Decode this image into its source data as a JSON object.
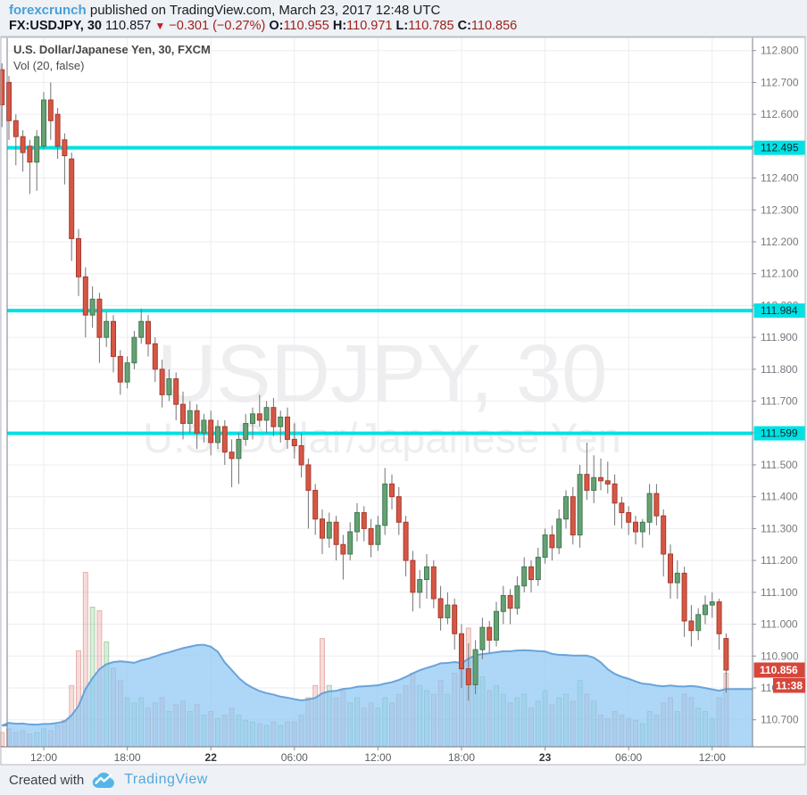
{
  "header": {
    "source": "forexcrunch",
    "published": "published on TradingView.com, March 23, 2017 12:48 UTC",
    "symbol": "FX:USDJPY, 30",
    "last_price": "110.857",
    "direction_icon": "▼",
    "change": "−0.301 (−0.27%)",
    "ohlc": [
      {
        "label": "O:",
        "value": "110.955"
      },
      {
        "label": "H:",
        "value": "110.971"
      },
      {
        "label": "L:",
        "value": "110.785"
      },
      {
        "label": "C:",
        "value": "110.856"
      }
    ]
  },
  "legend": {
    "title": "U.S. Dollar/Japanese Yen, 30, FXCM",
    "indicator": "Vol (20, false)"
  },
  "watermark": {
    "line1": "USDJPY, 30",
    "line2": "U.S. Dollar/Japanese Yen"
  },
  "footer": {
    "created_with": "Created with",
    "brand": "TradingView",
    "logo": "tradingview-cloud-icon"
  },
  "colors": {
    "up_fill": "#66a173",
    "up_border": "#3f7c52",
    "down_fill": "#d65745",
    "down_border": "#a93b2e",
    "wick": "#737375",
    "vol_up_fill": "rgba(132,196,138,0.30)",
    "vol_up_border": "rgba(108,176,116,0.55)",
    "vol_down_fill": "rgba(222,130,120,0.28)",
    "vol_down_border": "rgba(210,120,112,0.5)",
    "ma_fill": "rgba(140,198,244,0.70)",
    "ma_line": "rgba(98,160,216,0.95)",
    "level_line": "#00e1e4",
    "last_label_bg": "#d6473b",
    "grid": "#ededf1",
    "axis_text": "#76787f",
    "border": "#7a7e88",
    "watermark": "rgba(101,103,120,0.11)"
  },
  "chart_data": {
    "type": "candlestick+volume",
    "symbol": "USDJPY",
    "interval": "30",
    "exchange": "FXCM",
    "price_axis": {
      "min": 110.63,
      "max": 112.85,
      "tick_step": 0.1,
      "ticks": [
        112.8,
        112.7,
        112.6,
        112.5,
        112.4,
        112.3,
        112.2,
        112.1,
        112.0,
        111.9,
        111.8,
        111.7,
        111.6,
        111.5,
        111.4,
        111.3,
        111.2,
        111.1,
        111.0,
        110.9,
        110.8,
        110.7
      ]
    },
    "time_axis": {
      "labels": [
        {
          "text": "12:00",
          "bar": 6,
          "bold": false
        },
        {
          "text": "18:00",
          "bar": 18,
          "bold": false
        },
        {
          "text": "22",
          "bar": 30,
          "bold": true
        },
        {
          "text": "06:00",
          "bar": 42,
          "bold": false
        },
        {
          "text": "12:00",
          "bar": 54,
          "bold": false
        },
        {
          "text": "18:00",
          "bar": 66,
          "bold": false
        },
        {
          "text": "23",
          "bar": 78,
          "bold": true
        },
        {
          "text": "06:00",
          "bar": 90,
          "bold": false
        },
        {
          "text": "12:00",
          "bar": 102,
          "bold": false
        }
      ]
    },
    "horizontal_lines": [
      112.495,
      111.984,
      111.599
    ],
    "last": {
      "price": 110.856,
      "price_label": "110.856",
      "time_label": "11:38"
    },
    "volume_ma": {
      "length": 20
    },
    "candles": [
      [
        112.74,
        112.76,
        112.56,
        112.63,
        0.08
      ],
      [
        112.7,
        112.72,
        112.52,
        112.58,
        0.1
      ],
      [
        112.58,
        112.6,
        112.44,
        112.53,
        0.08
      ],
      [
        112.53,
        112.55,
        112.42,
        112.48,
        0.09
      ],
      [
        112.5,
        112.52,
        112.35,
        112.45,
        0.07
      ],
      [
        112.45,
        112.55,
        112.36,
        112.53,
        0.08
      ],
      [
        112.5,
        112.67,
        112.49,
        112.645,
        0.1
      ],
      [
        112.645,
        112.7,
        112.52,
        112.58,
        0.09
      ],
      [
        112.6,
        112.62,
        112.46,
        112.5,
        0.12
      ],
      [
        112.52,
        112.54,
        112.38,
        112.47,
        0.15
      ],
      [
        112.46,
        112.48,
        112.14,
        112.21,
        0.35
      ],
      [
        112.21,
        112.24,
        112.03,
        112.09,
        0.55
      ],
      [
        112.09,
        112.12,
        111.9,
        111.97,
        1.0
      ],
      [
        111.97,
        112.06,
        111.93,
        112.02,
        0.8
      ],
      [
        112.02,
        112.04,
        111.82,
        111.9,
        0.78
      ],
      [
        111.9,
        111.98,
        111.87,
        111.95,
        0.6
      ],
      [
        111.95,
        111.97,
        111.79,
        111.84,
        0.45
      ],
      [
        111.84,
        111.86,
        111.72,
        111.76,
        0.38
      ],
      [
        111.76,
        111.84,
        111.74,
        111.82,
        0.28
      ],
      [
        111.82,
        111.92,
        111.8,
        111.9,
        0.25
      ],
      [
        111.9,
        111.99,
        111.88,
        111.95,
        0.28
      ],
      [
        111.95,
        111.97,
        111.84,
        111.88,
        0.22
      ],
      [
        111.88,
        111.9,
        111.76,
        111.8,
        0.25
      ],
      [
        111.8,
        111.83,
        111.68,
        111.72,
        0.28
      ],
      [
        111.72,
        111.8,
        111.7,
        111.77,
        0.2
      ],
      [
        111.77,
        111.79,
        111.64,
        111.69,
        0.24
      ],
      [
        111.69,
        111.73,
        111.58,
        111.63,
        0.26
      ],
      [
        111.63,
        111.7,
        111.6,
        111.67,
        0.2
      ],
      [
        111.67,
        111.69,
        111.55,
        111.6,
        0.24
      ],
      [
        111.6,
        111.66,
        111.57,
        111.64,
        0.18
      ],
      [
        111.64,
        111.67,
        111.53,
        111.57,
        0.2
      ],
      [
        111.57,
        111.64,
        111.55,
        111.62,
        0.16
      ],
      [
        111.62,
        111.64,
        111.5,
        111.54,
        0.18
      ],
      [
        111.54,
        111.58,
        111.43,
        111.52,
        0.22
      ],
      [
        111.52,
        111.6,
        111.44,
        111.58,
        0.18
      ],
      [
        111.58,
        111.66,
        111.56,
        111.63,
        0.15
      ],
      [
        111.63,
        111.68,
        111.58,
        111.66,
        0.14
      ],
      [
        111.66,
        111.72,
        111.62,
        111.64,
        0.13
      ],
      [
        111.64,
        111.7,
        111.6,
        111.68,
        0.12
      ],
      [
        111.68,
        111.71,
        111.59,
        111.62,
        0.14
      ],
      [
        111.62,
        111.67,
        111.57,
        111.65,
        0.12
      ],
      [
        111.65,
        111.68,
        111.55,
        111.58,
        0.14
      ],
      [
        111.58,
        111.63,
        111.52,
        111.56,
        0.14
      ],
      [
        111.56,
        111.6,
        111.46,
        111.5,
        0.18
      ],
      [
        111.5,
        111.52,
        111.3,
        111.42,
        0.28
      ],
      [
        111.42,
        111.44,
        111.28,
        111.33,
        0.35
      ],
      [
        111.33,
        111.36,
        111.22,
        111.27,
        0.62
      ],
      [
        111.27,
        111.35,
        111.24,
        111.32,
        0.35
      ],
      [
        111.32,
        111.34,
        111.2,
        111.25,
        0.28
      ],
      [
        111.25,
        111.28,
        111.14,
        111.22,
        0.32
      ],
      [
        111.22,
        111.32,
        111.2,
        111.29,
        0.25
      ],
      [
        111.29,
        111.38,
        111.26,
        111.35,
        0.28
      ],
      [
        111.35,
        111.37,
        111.26,
        111.3,
        0.22
      ],
      [
        111.3,
        111.33,
        111.21,
        111.25,
        0.25
      ],
      [
        111.25,
        111.34,
        111.23,
        111.31,
        0.22
      ],
      [
        111.31,
        111.49,
        111.28,
        111.44,
        0.28
      ],
      [
        111.44,
        111.47,
        111.36,
        111.4,
        0.25
      ],
      [
        111.4,
        111.43,
        111.28,
        111.32,
        0.3
      ],
      [
        111.32,
        111.34,
        111.15,
        111.2,
        0.35
      ],
      [
        111.2,
        111.23,
        111.04,
        111.1,
        0.42
      ],
      [
        111.1,
        111.17,
        111.05,
        111.14,
        0.35
      ],
      [
        111.14,
        111.22,
        111.08,
        111.18,
        0.32
      ],
      [
        111.18,
        111.2,
        111.05,
        111.08,
        0.3
      ],
      [
        111.08,
        111.12,
        110.98,
        111.02,
        0.38
      ],
      [
        111.02,
        111.1,
        111.0,
        111.06,
        0.3
      ],
      [
        111.06,
        111.08,
        110.92,
        110.97,
        0.42
      ],
      [
        110.97,
        111.0,
        110.8,
        110.86,
        0.55
      ],
      [
        110.86,
        110.94,
        110.76,
        110.81,
        0.68
      ],
      [
        110.81,
        110.95,
        110.78,
        110.92,
        0.55
      ],
      [
        110.92,
        111.02,
        110.89,
        110.99,
        0.4
      ],
      [
        110.99,
        111.01,
        110.91,
        110.95,
        0.32
      ],
      [
        110.95,
        111.07,
        110.93,
        111.04,
        0.35
      ],
      [
        111.04,
        111.12,
        111.0,
        111.09,
        0.3
      ],
      [
        111.09,
        111.11,
        111.0,
        111.05,
        0.25
      ],
      [
        111.05,
        111.15,
        111.03,
        111.12,
        0.28
      ],
      [
        111.12,
        111.21,
        111.1,
        111.18,
        0.3
      ],
      [
        111.18,
        111.2,
        111.1,
        111.14,
        0.22
      ],
      [
        111.14,
        111.24,
        111.12,
        111.21,
        0.26
      ],
      [
        111.21,
        111.3,
        111.19,
        111.28,
        0.32
      ],
      [
        111.28,
        111.31,
        111.2,
        111.24,
        0.24
      ],
      [
        111.24,
        111.36,
        111.22,
        111.33,
        0.28
      ],
      [
        111.33,
        111.42,
        111.3,
        111.4,
        0.3
      ],
      [
        111.4,
        111.43,
        111.25,
        111.28,
        0.26
      ],
      [
        111.28,
        111.5,
        111.24,
        111.47,
        0.38
      ],
      [
        111.47,
        111.57,
        111.39,
        111.42,
        0.3
      ],
      [
        111.42,
        111.53,
        111.38,
        111.46,
        0.26
      ],
      [
        111.46,
        111.52,
        111.42,
        111.45,
        0.18
      ],
      [
        111.45,
        111.51,
        111.41,
        111.44,
        0.16
      ],
      [
        111.44,
        111.47,
        111.31,
        111.38,
        0.2
      ],
      [
        111.38,
        111.4,
        111.3,
        111.35,
        0.18
      ],
      [
        111.35,
        111.37,
        111.28,
        111.32,
        0.16
      ],
      [
        111.32,
        111.34,
        111.25,
        111.29,
        0.15
      ],
      [
        111.29,
        111.33,
        111.24,
        111.32,
        0.13
      ],
      [
        111.32,
        111.44,
        111.28,
        111.41,
        0.2
      ],
      [
        111.41,
        111.44,
        111.31,
        111.34,
        0.18
      ],
      [
        111.34,
        111.36,
        111.15,
        111.22,
        0.25
      ],
      [
        111.22,
        111.25,
        111.08,
        111.13,
        0.28
      ],
      [
        111.13,
        111.2,
        111.08,
        111.16,
        0.2
      ],
      [
        111.16,
        111.18,
        110.96,
        111.01,
        0.3
      ],
      [
        111.01,
        111.06,
        110.93,
        110.98,
        0.28
      ],
      [
        110.98,
        111.05,
        110.95,
        111.03,
        0.22
      ],
      [
        111.03,
        111.09,
        111.0,
        111.06,
        0.2
      ],
      [
        111.06,
        111.1,
        111.02,
        111.07,
        0.16
      ],
      [
        111.07,
        111.08,
        110.92,
        110.97,
        0.28
      ],
      [
        110.955,
        110.971,
        110.785,
        110.856,
        0.42
      ]
    ]
  }
}
